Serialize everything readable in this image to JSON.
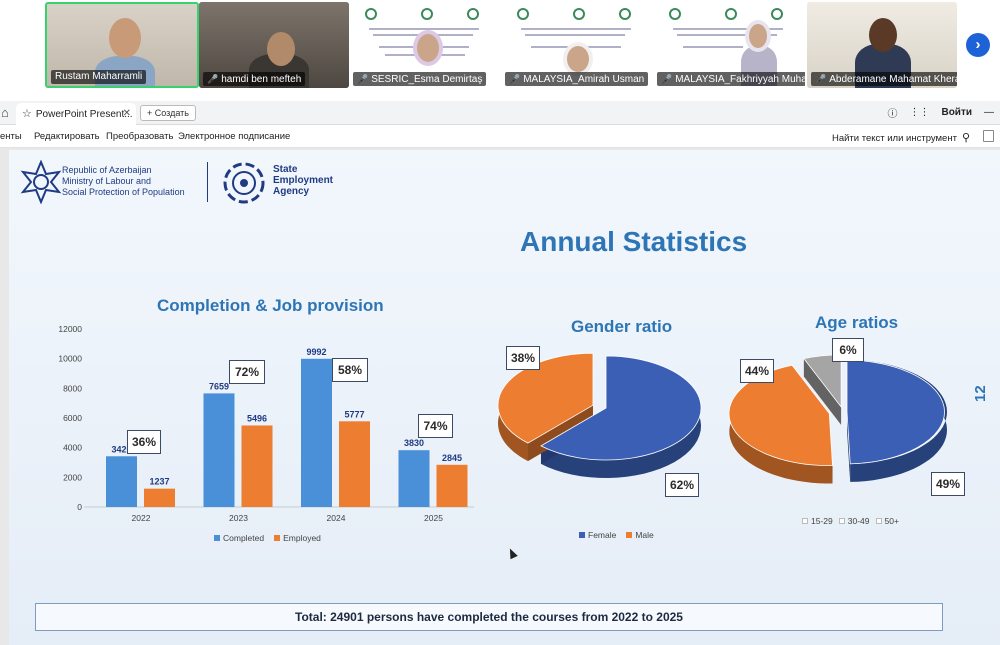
{
  "meeting": {
    "participants": [
      {
        "name": "Rustam Maharramli",
        "muted": false
      },
      {
        "name": "hamdi ben mefteh",
        "muted": true
      },
      {
        "name": "SESRIC_Esma Demirtaş",
        "muted": true
      },
      {
        "name": "MALAYSIA_Amirah Usman",
        "muted": true
      },
      {
        "name": "MALAYSIA_Fakhriyyah Muhardi",
        "muted": true
      },
      {
        "name": "Abderamane Mahamat Khera...",
        "muted": true
      }
    ],
    "next_arrow_icon": "chevron-right-icon"
  },
  "browser": {
    "tab_title": "PowerPoint Present...",
    "new_tab_label": "Создать",
    "login_label": "Войти"
  },
  "pdf_toolbar": {
    "items": [
      "енты",
      "Редактировать",
      "Преобразовать",
      "Электронное подписание"
    ],
    "find_label": "Найти текст или инструмент"
  },
  "slide": {
    "ministry": [
      "Republic of Azerbaijan",
      "Ministry of Labour and",
      "Social Protection of Population"
    ],
    "agency": [
      "State",
      "Employment",
      "Agency"
    ],
    "title": "Annual Statistics",
    "side_number": "12",
    "total_text": "Total: 24901 persons have completed the courses from 2022 to 2025",
    "colors": {
      "blue": "#4a90d9",
      "orange": "#ed7d31",
      "gray": "#a5a5a5",
      "title": "#2e75b6",
      "dark_blue": "#3a5fb5"
    }
  },
  "chart_data": [
    {
      "type": "bar",
      "title": "Completion & Job provision",
      "categories": [
        "2022",
        "2023",
        "2024",
        "2025"
      ],
      "series": [
        {
          "name": "Completed",
          "values": [
            3420,
            7659,
            9992,
            3830
          ]
        },
        {
          "name": "Employed",
          "values": [
            1237,
            5496,
            5777,
            2845
          ]
        }
      ],
      "ylim": [
        0,
        12000
      ],
      "yticks": [
        0,
        2000,
        4000,
        6000,
        8000,
        10000,
        12000
      ],
      "percent_labels": [
        "36%",
        "72%",
        "58%",
        "74%"
      ],
      "legend_position": "bottom"
    },
    {
      "type": "pie",
      "title": "Gender ratio",
      "labels": [
        "Female",
        "Male"
      ],
      "values": [
        62,
        38
      ],
      "value_labels": [
        "62%",
        "38%"
      ],
      "legend_position": "bottom"
    },
    {
      "type": "pie",
      "title": "Age ratios",
      "labels": [
        "15-29",
        "30-49",
        "50+"
      ],
      "values": [
        49,
        44,
        6
      ],
      "value_labels": [
        "49%",
        "44%",
        "6%"
      ],
      "legend_position": "bottom"
    }
  ]
}
